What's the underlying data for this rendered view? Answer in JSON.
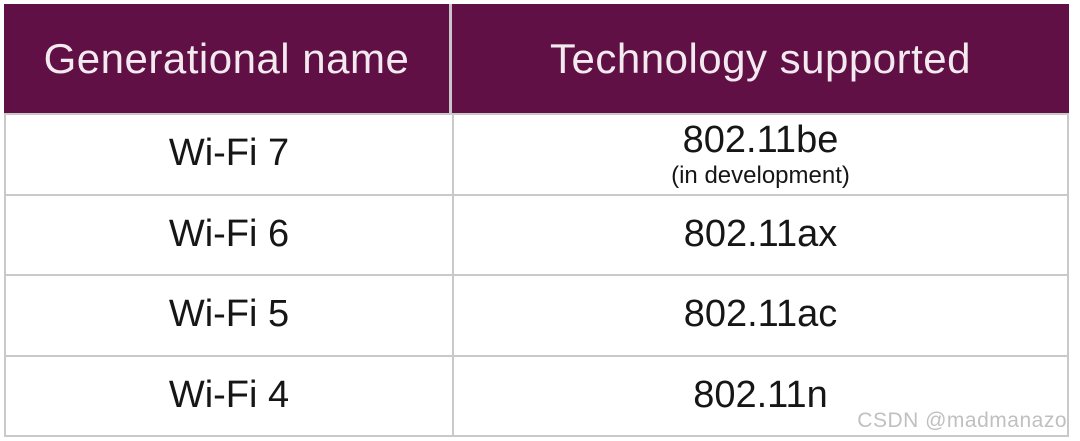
{
  "colors": {
    "header_bg": "#601045",
    "header_text": "#F3EAF0",
    "divider": "#CBC4CA",
    "border": "#C9C9C9",
    "cell_text": "#161616",
    "watermark": "#C0C0C0"
  },
  "table": {
    "columns": [
      {
        "label": "Generational name"
      },
      {
        "label": "Technology supported"
      }
    ],
    "rows": [
      {
        "generation": "Wi-Fi 7",
        "technology": "802.11be",
        "note": "(in development)"
      },
      {
        "generation": "Wi-Fi 6",
        "technology": "802.11ax",
        "note": ""
      },
      {
        "generation": "Wi-Fi 5",
        "technology": "802.11ac",
        "note": ""
      },
      {
        "generation": "Wi-Fi 4",
        "technology": "802.11n",
        "note": ""
      }
    ]
  },
  "watermark": {
    "text": "CSDN @madmanazo"
  },
  "chart_data": {
    "type": "table",
    "title": "",
    "columns": [
      "Generational name",
      "Technology supported"
    ],
    "rows": [
      [
        "Wi-Fi 7",
        "802.11be (in development)"
      ],
      [
        "Wi-Fi 6",
        "802.11ax"
      ],
      [
        "Wi-Fi 5",
        "802.11ac"
      ],
      [
        "Wi-Fi 4",
        "802.11n"
      ]
    ]
  }
}
